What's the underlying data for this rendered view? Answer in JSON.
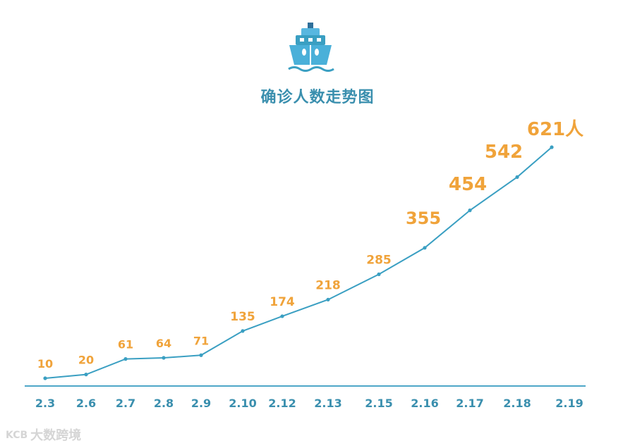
{
  "title": "确诊人数走势图",
  "watermark": "大数跨境",
  "watermark_logo": "KCB",
  "icon": "ship-icon",
  "colors": {
    "line": "#3a9fc2",
    "label": "#f0a33a",
    "axis": "#4ea7c8",
    "tick": "#3a8fae",
    "title": "#3a8fae"
  },
  "chart_data": {
    "type": "line",
    "title": "确诊人数走势图",
    "categories": [
      "2.3",
      "2.6",
      "2.7",
      "2.8",
      "2.9",
      "2.10",
      "2.12",
      "2.13",
      "2.15",
      "2.16",
      "2.17",
      "2.18",
      "2.19"
    ],
    "values": [
      10,
      20,
      61,
      64,
      71,
      135,
      174,
      218,
      285,
      355,
      454,
      542,
      621
    ],
    "data_labels": [
      "10",
      "20",
      "61",
      "64",
      "71",
      "135",
      "174",
      "218",
      "285",
      "355",
      "454",
      "542",
      "621人"
    ],
    "xlabel": "",
    "ylabel": "",
    "ylim": [
      0,
      650
    ],
    "grid": false,
    "legend": "none"
  }
}
